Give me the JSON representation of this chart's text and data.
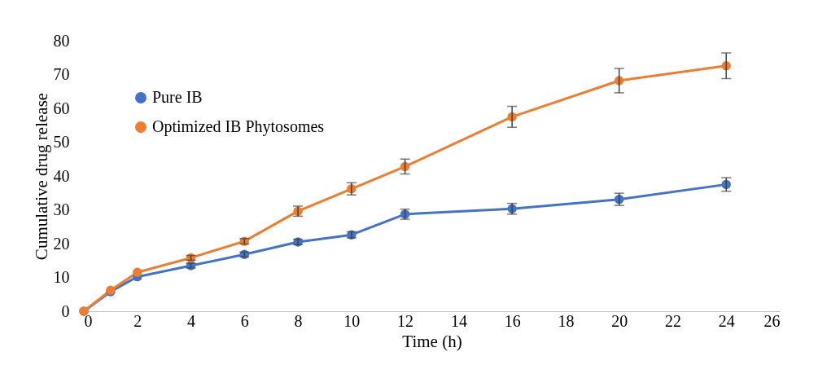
{
  "chart_data": {
    "type": "line",
    "xlabel": "Time (h)",
    "ylabel": "Cumulative drug release",
    "x": [
      0,
      1,
      2,
      4,
      6,
      8,
      10,
      12,
      16,
      20,
      24
    ],
    "series": [
      {
        "name": "Pure IB",
        "color": "#4472c4",
        "values": [
          0,
          5.8,
          10.2,
          13.5,
          16.8,
          20.5,
          22.6,
          28.7,
          30.3,
          33.1,
          37.5
        ],
        "errors": [
          null,
          null,
          null,
          0.7,
          0.7,
          0.8,
          0.9,
          1.5,
          1.6,
          1.8,
          2.0
        ]
      },
      {
        "name": "Optimized IB Phytosomes",
        "color": "#ed7d31",
        "values": [
          0,
          6.2,
          11.5,
          15.8,
          20.7,
          29.6,
          36.2,
          42.8,
          57.5,
          68.2,
          72.6
        ],
        "errors": [
          null,
          null,
          null,
          0.7,
          0.8,
          1.5,
          1.8,
          2.2,
          3.1,
          3.6,
          3.8
        ]
      }
    ],
    "xlim": [
      0,
      26
    ],
    "xticks": [
      0,
      2,
      4,
      6,
      8,
      10,
      12,
      14,
      16,
      18,
      20,
      22,
      24,
      26
    ],
    "ylim": [
      0,
      80
    ],
    "yticks": [
      0,
      10,
      20,
      30,
      40,
      50,
      60,
      70,
      80
    ],
    "grid": false,
    "legend": "top left",
    "marker": "circle",
    "line_style": "solid"
  }
}
